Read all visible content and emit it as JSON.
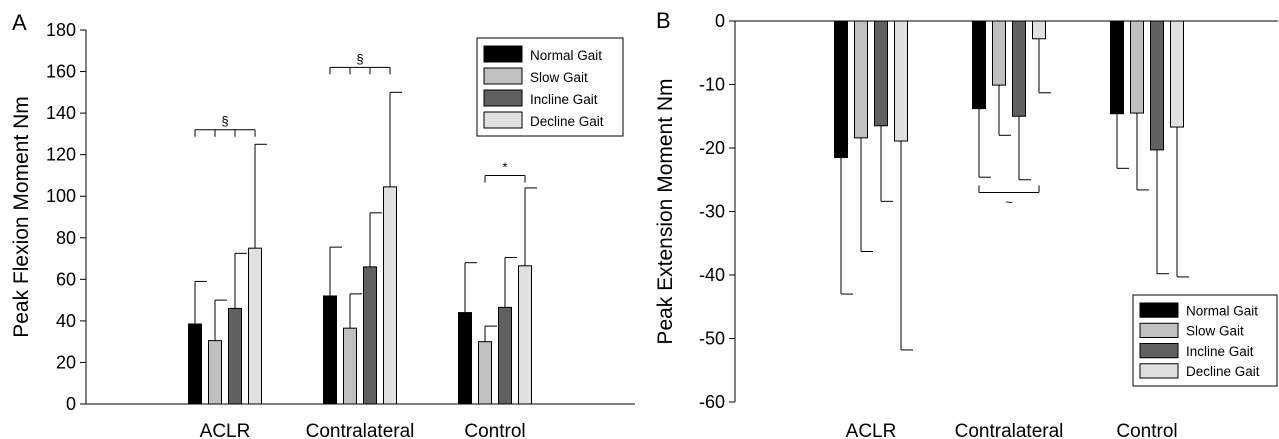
{
  "chart_data": [
    {
      "type": "bar",
      "panel_label": "A",
      "ylabel": "Peak Flexion Moment Nm",
      "categories": [
        "ACLR",
        "Contralateral",
        "Control"
      ],
      "ylim": [
        0,
        180
      ],
      "yticks": [
        0,
        20,
        40,
        60,
        80,
        100,
        120,
        140,
        160,
        180
      ],
      "error_direction": "up",
      "series": [
        {
          "name": "Normal Gait",
          "values": [
            38.5,
            52,
            44
          ],
          "errors": [
            20.5,
            23.5,
            24
          ]
        },
        {
          "name": "Slow Gait",
          "values": [
            30.5,
            36.5,
            30
          ],
          "errors": [
            19.5,
            16.5,
            7.5
          ]
        },
        {
          "name": "Incline Gait",
          "values": [
            46,
            66,
            46.5
          ],
          "errors": [
            26.5,
            26,
            24
          ]
        },
        {
          "name": "Decline Gait",
          "values": [
            75,
            104.5,
            66.5
          ],
          "errors": [
            50,
            45.5,
            37.5
          ]
        }
      ],
      "legend_position": "top-right",
      "annotations": [
        {
          "symbol": "§",
          "category": "ACLR",
          "bar_from": 0,
          "bar_to": 3,
          "inner_ticks": [
            1,
            2
          ],
          "y": 132
        },
        {
          "symbol": "§",
          "category": "Contralateral",
          "bar_from": 0,
          "bar_to": 3,
          "inner_ticks": [
            1,
            2
          ],
          "y": 162
        },
        {
          "symbol": "*",
          "category": "Control",
          "bar_from": 1,
          "bar_to": 3,
          "inner_ticks": [],
          "y": 110
        }
      ]
    },
    {
      "type": "bar",
      "panel_label": "B",
      "ylabel": "Peak Extension Moment Nm",
      "categories": [
        "ACLR",
        "Contralateral",
        "Control"
      ],
      "ylim": [
        -60,
        0
      ],
      "yticks": [
        0,
        -10,
        -20,
        -30,
        -40,
        -50,
        -60
      ],
      "error_direction": "down",
      "series": [
        {
          "name": "Normal Gait",
          "values": [
            -21.5,
            -13.8,
            -14.6
          ],
          "errors": [
            21.5,
            10.8,
            8.6
          ]
        },
        {
          "name": "Slow Gait",
          "values": [
            -18.4,
            -10.1,
            -14.5
          ],
          "errors": [
            17.9,
            7.9,
            12.1
          ]
        },
        {
          "name": "Incline Gait",
          "values": [
            -16.5,
            -15,
            -20.3
          ],
          "errors": [
            11.9,
            10,
            19.5
          ]
        },
        {
          "name": "Decline Gait",
          "values": [
            -18.9,
            -2.8,
            -16.7
          ],
          "errors": [
            32.9,
            8.5,
            23.6
          ]
        }
      ],
      "legend_position": "bottom-right",
      "annotations": [
        {
          "symbol": "~",
          "category": "Contralateral",
          "bar_from": 0,
          "bar_to": 3,
          "inner_ticks": [],
          "y": -27
        }
      ]
    }
  ],
  "series_colors": [
    "#000000",
    "#c0c0c0",
    "#606060",
    "#e0e0e0"
  ]
}
